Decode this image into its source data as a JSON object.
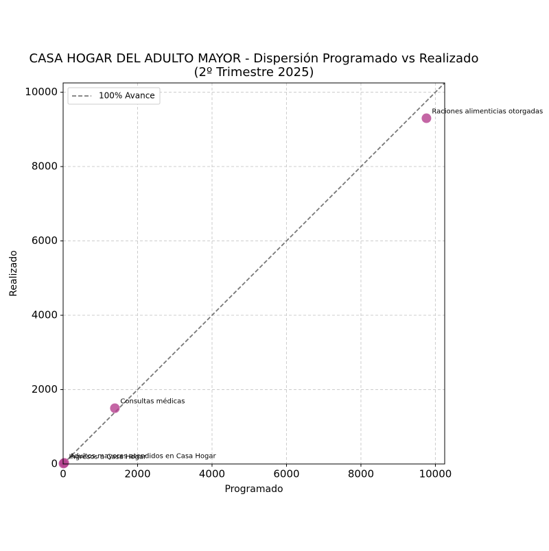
{
  "chart_data": {
    "type": "scatter",
    "title": [
      "CASA HOGAR DEL ADULTO MAYOR - Dispersión Programado vs Realizado",
      "(2º Trimestre 2025)"
    ],
    "x_label": "Programado",
    "y_label": "Realizado",
    "point_labels": [
      "Raciones alimenticias otorgadas",
      "Consultas médicas",
      "Adultos mayores atendidos en Casa Hogar",
      "Ingresos a Casa Hogar"
    ],
    "x": [
      9760,
      1390,
      30,
      10
    ],
    "y": [
      9300,
      1500,
      30,
      10
    ],
    "color": "#b5408f",
    "reference_line": {
      "name": "100% Avance",
      "color": "#777777"
    },
    "xlim": [
      0,
      10250
    ],
    "ylim": [
      0,
      10250
    ],
    "xticks": [
      0,
      2000,
      4000,
      6000,
      8000,
      10000
    ],
    "yticks": [
      0,
      2000,
      4000,
      6000,
      8000,
      10000
    ],
    "grid": true,
    "legend": "upper left"
  }
}
